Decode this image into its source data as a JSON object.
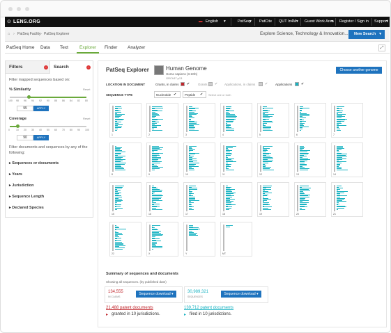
{
  "brand": {
    "logo": "LENS.ORG",
    "accent": "#6aa93b",
    "blue": "#1e73be",
    "red": "#c1272d",
    "teal": "#19b3c2"
  },
  "topbar": {
    "language": "English",
    "links": [
      "PatSeq",
      "PatCite",
      "QUT In4M",
      "Guest Work Area",
      "Register / Sign in",
      "Support"
    ]
  },
  "subbar": {
    "breadcrumb": [
      "PatSeq Facility",
      "PatSeq Explorer"
    ],
    "tagline": "Explore Science, Technology & Innovation...",
    "new_search": "New Search"
  },
  "nav": {
    "tabs": [
      "PatSeq Home",
      "Data",
      "Text",
      "Explorer",
      "Finder",
      "Analyzer"
    ],
    "active": "Explorer"
  },
  "sidebar": {
    "tab_filters": "Filters",
    "tab_search": "Search",
    "intro": "Filter mapped sequences based on:",
    "similarity": {
      "label": "% Similarity",
      "reset": "Reset",
      "ticks": [
        "100",
        "98",
        "96",
        "94",
        "92",
        "90",
        "88",
        "86",
        "84",
        "82",
        "80"
      ],
      "value": "95",
      "apply": "APPLY",
      "level_percent": 25
    },
    "coverage": {
      "label": "Coverage",
      "reset": "Reset",
      "ticks": [
        "0",
        "10",
        "20",
        "30",
        "40",
        "50",
        "60",
        "70",
        "80",
        "90",
        "100"
      ],
      "value": "90",
      "apply": "APPLY",
      "level_percent": 10
    },
    "filter_text": [
      "Filter documents and sequences by any of the",
      "following:"
    ],
    "facets": [
      "Sequences or documents",
      "Years",
      "Jurisdiction",
      "Sequence Length",
      "Declared Species"
    ]
  },
  "main": {
    "title": "PatSeq Explorer",
    "genome_title": "Human Genome",
    "genome_species": "Homo sapiens (3.1Gb)",
    "genome_id": "GRCh37.p13",
    "choose_button": "Choose another genome",
    "location_label": "LOCATION IN DOCUMENT",
    "locations": [
      {
        "label": "Grants, in claims",
        "color": "#c1272d"
      },
      {
        "label": "Grants",
        "color": "#ccc"
      },
      {
        "label": "Applications, in claims",
        "color": "#ccc"
      },
      {
        "label": "Applications",
        "color": "#19b3c2"
      }
    ],
    "sequence_label": "SEQUENCE TYPE",
    "sequence_types": [
      "Nucleotide",
      "Peptide"
    ],
    "sequence_hint": "Select one or both",
    "chromosomes": [
      "1",
      "2",
      "3",
      "4",
      "5",
      "6",
      "7",
      "8",
      "9",
      "10",
      "11",
      "12",
      "13",
      "14",
      "15",
      "16",
      "17",
      "18",
      "19",
      "20",
      "21",
      "22",
      "X",
      "Y",
      "MT"
    ],
    "summary_title": "Summary of sequences and documents",
    "summary_note": "Showing all sequences. (by published date)",
    "grants": {
      "count": "134,555",
      "count_label": "IN CLAIMS",
      "download": "Sequence download",
      "docs": "21,488 patent documents",
      "juris": "granted in 10 jurisdictions."
    },
    "apps": {
      "count": "30,989,321",
      "count_label": "SEQUENCES",
      "download": "Sequence download",
      "docs": "139,712 patent documents",
      "juris": "filed in 10 jurisdictions."
    }
  }
}
